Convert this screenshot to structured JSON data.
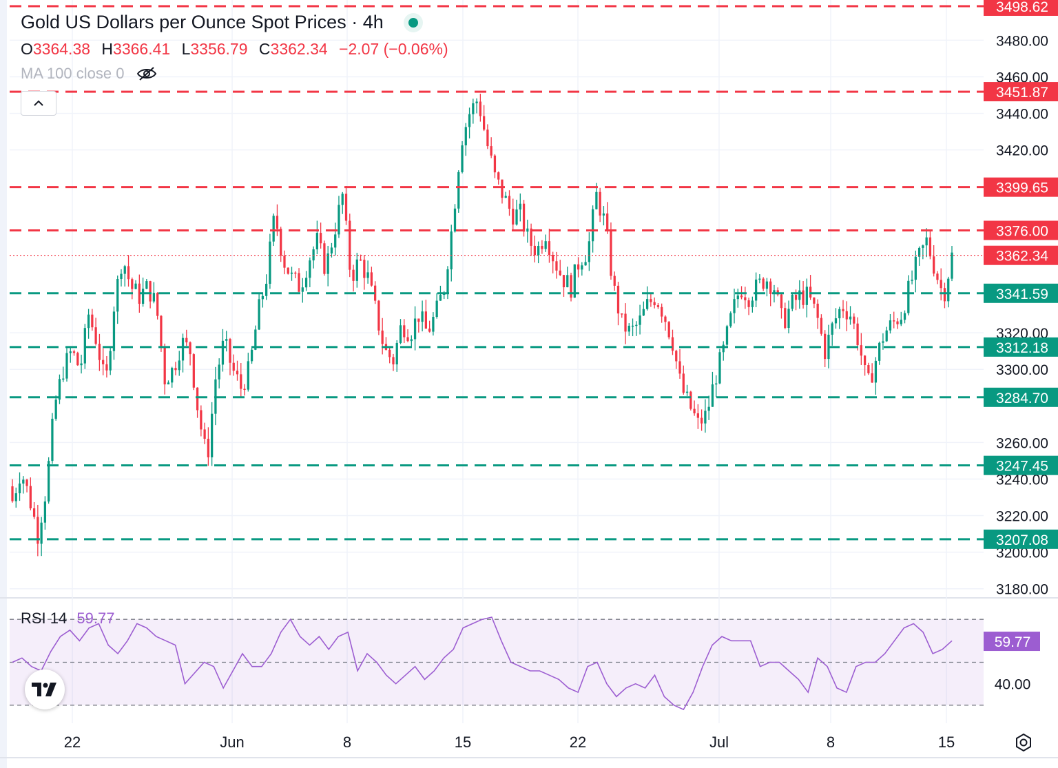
{
  "header": {
    "title": "Gold US Dollars per Ounce Spot Prices · 4h",
    "ohlc": {
      "o_label": "O",
      "o_value": "3364.38",
      "h_label": "H",
      "h_value": "3366.41",
      "l_label": "L",
      "l_value": "3356.79",
      "c_label": "C",
      "c_value": "3362.34",
      "change": "−2.07 (−0.06%)"
    },
    "ma_label": "MA 100 close 0",
    "collapse_icon": "chevron-up-icon",
    "eye_icon": "eye-off-icon"
  },
  "rsi": {
    "label": "RSI 14",
    "value": "59.77",
    "level_label": "40.00",
    "color": "#9c5dd1"
  },
  "colors": {
    "up": "#089981",
    "down": "#f23645",
    "rsi": "#9c5dd1"
  },
  "chart_data": {
    "type": "candlestick",
    "title": "Gold US Dollars per Ounce Spot Prices · 4h",
    "ylim": [
      3175,
      3502
    ],
    "y_ticks": [
      "3480.00",
      "3460.00",
      "3440.00",
      "3420.00",
      "3320.00",
      "3300.00",
      "3260.00",
      "3240.00",
      "3220.00",
      "3200.00",
      "3180.00"
    ],
    "x_ticks": [
      "22",
      "Jun",
      "8",
      "15",
      "22",
      "Jul",
      "8",
      "15"
    ],
    "last_price": 3362.34,
    "last_price_label": "3362.34",
    "resistance_levels": [
      {
        "value": 3498.62,
        "label": "3498.62"
      },
      {
        "value": 3451.87,
        "label": "3451.87"
      },
      {
        "value": 3399.65,
        "label": "3399.65"
      },
      {
        "value": 3376.0,
        "label": "3376.00"
      }
    ],
    "support_levels": [
      {
        "value": 3341.59,
        "label": "3341.59"
      },
      {
        "value": 3312.18,
        "label": "3312.18"
      },
      {
        "value": 3284.7,
        "label": "3284.70"
      },
      {
        "value": 3247.45,
        "label": "3247.45"
      },
      {
        "value": 3207.08,
        "label": "3207.08"
      }
    ],
    "close_path": [
      3228,
      3245,
      3230,
      3210,
      3235,
      3280,
      3300,
      3310,
      3300,
      3330,
      3315,
      3290,
      3335,
      3362,
      3345,
      3340,
      3345,
      3335,
      3295,
      3300,
      3315,
      3310,
      3275,
      3250,
      3295,
      3315,
      3300,
      3290,
      3300,
      3330,
      3350,
      3385,
      3360,
      3350,
      3345,
      3360,
      3370,
      3355,
      3375,
      3395,
      3350,
      3360,
      3350,
      3330,
      3310,
      3305,
      3325,
      3320,
      3330,
      3320,
      3330,
      3345,
      3380,
      3425,
      3440,
      3448,
      3425,
      3405,
      3395,
      3385,
      3385,
      3370,
      3365,
      3375,
      3360,
      3350,
      3345,
      3360,
      3365,
      3395,
      3380,
      3345,
      3325,
      3320,
      3325,
      3335,
      3340,
      3330,
      3315,
      3290,
      3280,
      3270,
      3275,
      3295,
      3310,
      3330,
      3345,
      3340,
      3345,
      3350,
      3345,
      3325,
      3335,
      3340,
      3340,
      3330,
      3310,
      3325,
      3335,
      3330,
      3315,
      3290,
      3305,
      3320,
      3325,
      3330,
      3345,
      3360,
      3370,
      3355,
      3340,
      3362
    ],
    "rsi_ticks": [
      "40.00"
    ],
    "rsi_levels": [
      70,
      50,
      30
    ],
    "rsi_values": [
      50,
      52,
      48,
      46,
      55,
      62,
      65,
      60,
      66,
      68,
      58,
      54,
      60,
      68,
      66,
      62,
      60,
      58,
      40,
      45,
      50,
      48,
      38,
      46,
      54,
      48,
      48,
      54,
      64,
      70,
      62,
      58,
      62,
      56,
      62,
      64,
      46,
      54,
      50,
      44,
      40,
      44,
      48,
      42,
      46,
      52,
      56,
      66,
      68,
      70,
      71,
      60,
      50,
      48,
      46,
      46,
      44,
      42,
      38,
      36,
      48,
      50,
      40,
      34,
      38,
      40,
      38,
      44,
      34,
      30,
      28,
      36,
      48,
      58,
      62,
      60,
      60,
      60,
      48,
      50,
      50,
      46,
      42,
      36,
      52,
      48,
      38,
      36,
      48,
      50,
      50,
      54,
      60,
      66,
      68,
      64,
      54,
      56,
      60
    ],
    "rsi_last": 59.77
  }
}
